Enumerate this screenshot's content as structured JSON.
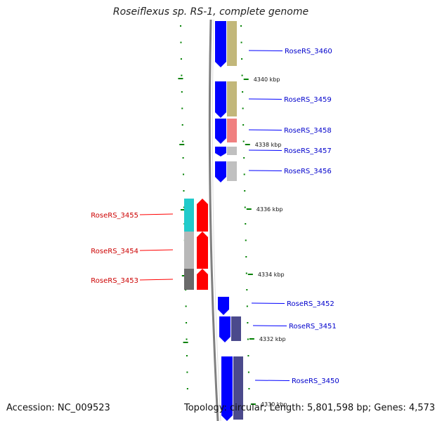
{
  "map": {
    "title": "Roseiflexus sp. RS-1, complete genome",
    "accession_label": "Accession:",
    "accession": "NC_009523",
    "topology_text": "Topology: circular; Length: 5,801,598 bp; Genes: 4,573"
  },
  "scale_labels": [
    "4340 kbp",
    "4338 kbp",
    "4336 kbp",
    "4334 kbp",
    "4332 kbp",
    "4330 kbp"
  ],
  "genes_plus": [
    {
      "label": "RoseRS_3460",
      "cog_color": "#c2b77a"
    },
    {
      "label": "RoseRS_3459",
      "cog_color": "#c2b77a"
    },
    {
      "label": "RoseRS_3458",
      "cog_color": "#f08080"
    },
    {
      "label": "RoseRS_3457",
      "cog_color": "#c0c0c0"
    },
    {
      "label": "RoseRS_3456",
      "cog_color": "#c0c0c0"
    },
    {
      "label": "RoseRS_3452",
      "cog_color": ""
    },
    {
      "label": "RoseRS_3451",
      "cog_color": "#4b4a8c"
    },
    {
      "label": "RoseRS_3450",
      "cog_color": "#4b4a8c"
    }
  ],
  "genes_minus": [
    {
      "label": "RoseRS_3455",
      "cog_color": "#22cbcb"
    },
    {
      "label": "RoseRS_3454",
      "cog_color": "#b8b8b8"
    },
    {
      "label": "RoseRS_3453",
      "cog_color": "#6a6a6a"
    }
  ],
  "colors": {
    "plus_strand": "#0000ff",
    "minus_strand": "#ff0000",
    "plus_label": "#0000cc",
    "minus_label": "#cc0000",
    "backbone": "#808080",
    "tick": "#008000"
  }
}
